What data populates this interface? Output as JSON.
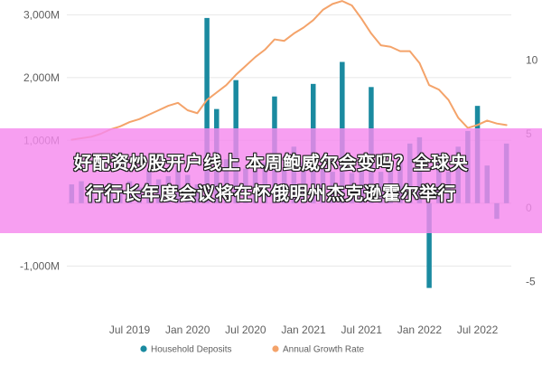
{
  "headline": {
    "line1": "好配资炒股开户线上 本周鲍威尔会变吗？全球央",
    "line2": "行行长年度会议将在怀俄明州杰克逊霍尔举行"
  },
  "chart_data": {
    "type": "bar",
    "x": [
      "2019-01",
      "2019-02",
      "2019-03",
      "2019-04",
      "2019-05",
      "2019-06",
      "2019-07",
      "2019-08",
      "2019-09",
      "2019-10",
      "2019-11",
      "2019-12",
      "2020-01",
      "2020-02",
      "2020-03",
      "2020-04",
      "2020-05",
      "2020-06",
      "2020-07",
      "2020-08",
      "2020-09",
      "2020-10",
      "2020-11",
      "2020-12",
      "2021-01",
      "2021-02",
      "2021-03",
      "2021-04",
      "2021-05",
      "2021-06",
      "2021-07",
      "2021-08",
      "2021-09",
      "2021-10",
      "2021-11",
      "2021-12",
      "2022-01",
      "2022-02",
      "2022-03",
      "2022-04",
      "2022-05",
      "2022-06",
      "2022-07",
      "2022-08",
      "2022-09",
      "2022-10"
    ],
    "series": [
      {
        "name": "Household Deposits",
        "type": "bar",
        "axis": "left",
        "color": "#1a8aa0",
        "values": [
          300,
          350,
          250,
          280,
          320,
          300,
          350,
          250,
          550,
          380,
          430,
          600,
          450,
          300,
          2950,
          1500,
          700,
          1960,
          550,
          700,
          650,
          1700,
          520,
          900,
          650,
          1900,
          580,
          500,
          2250,
          480,
          700,
          1850,
          500,
          600,
          700,
          950,
          1050,
          -1350,
          800,
          500,
          900,
          1150,
          1550,
          600,
          -250,
          950
        ]
      },
      {
        "name": "Annual Growth Rate",
        "type": "line",
        "axis": "right",
        "color": "#f4a36a",
        "values": [
          4.6,
          4.7,
          4.8,
          5.0,
          5.3,
          5.5,
          5.8,
          6.0,
          6.3,
          6.6,
          6.9,
          7.1,
          6.6,
          6.4,
          7.3,
          7.8,
          8.3,
          9.0,
          9.6,
          10.2,
          10.7,
          11.4,
          11.3,
          11.8,
          12.2,
          12.7,
          13.4,
          13.8,
          14.0,
          13.7,
          12.8,
          11.8,
          11.0,
          10.9,
          10.6,
          10.6,
          9.8,
          8.3,
          8.0,
          7.3,
          6.1,
          5.4,
          5.6,
          5.9,
          5.7,
          5.6
        ]
      }
    ],
    "xticks": [
      {
        "label": "Jul 2019",
        "x": "2019-07"
      },
      {
        "label": "Jan 2020",
        "x": "2020-01"
      },
      {
        "label": "Jul 2020",
        "x": "2020-07"
      },
      {
        "label": "Jan 2021",
        "x": "2021-01"
      },
      {
        "label": "Jul 2021",
        "x": "2021-07"
      },
      {
        "label": "Jan 2022",
        "x": "2022-01"
      },
      {
        "label": "Jul 2022",
        "x": "2022-07"
      }
    ],
    "y_left_ticks": [
      {
        "label": "3,000M",
        "value": 3000
      },
      {
        "label": "2,000M",
        "value": 2000
      },
      {
        "label": "1,000M",
        "value": 1000
      },
      {
        "label": "-1,000M",
        "value": -1000
      }
    ],
    "y_right_ticks": [
      {
        "label": "10",
        "value": 10
      },
      {
        "label": "5",
        "value": 5
      },
      {
        "label": "0",
        "value": 0
      },
      {
        "label": "-5",
        "value": -5
      }
    ],
    "ylim_left": [
      -1600,
      3150
    ],
    "ylim_right": [
      -6.5,
      13.7
    ],
    "legend": {
      "position": "bottom",
      "items": [
        {
          "label": "Household Deposits",
          "color": "#1a8aa0"
        },
        {
          "label": "Annual Growth Rate",
          "color": "#f4a36a"
        }
      ]
    },
    "colors": {
      "bar": "#1a8aa0",
      "line": "#f4a36a",
      "overlay": "#f58aee"
    }
  }
}
